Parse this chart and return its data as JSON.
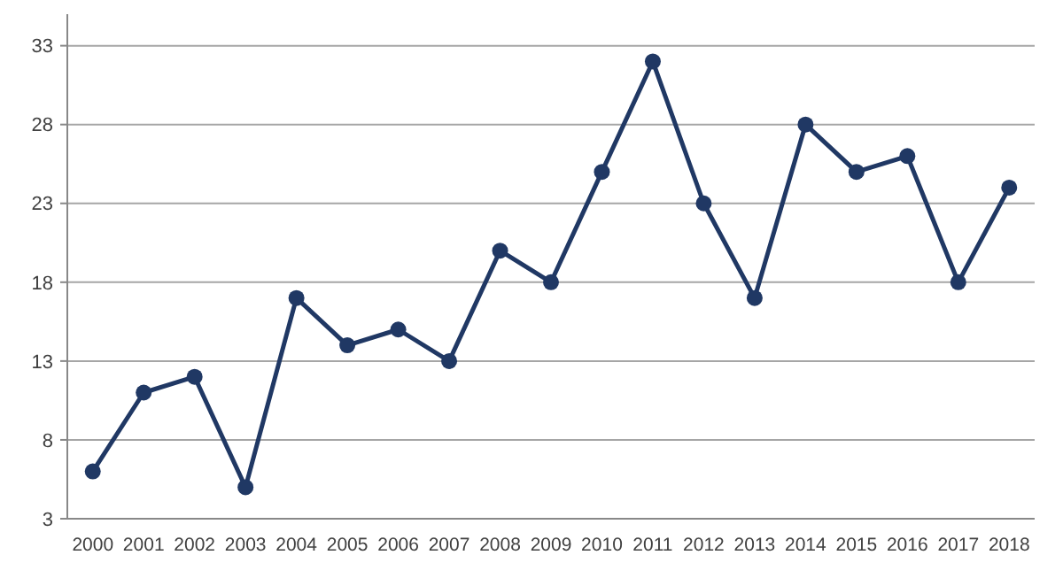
{
  "chart_data": {
    "type": "line",
    "categories": [
      "2000",
      "2001",
      "2002",
      "2003",
      "2004",
      "2005",
      "2006",
      "2007",
      "2008",
      "2009",
      "2010",
      "2011",
      "2012",
      "2013",
      "2014",
      "2015",
      "2016",
      "2017",
      "2018"
    ],
    "series": [
      {
        "color": "#203864",
        "values": [
          6,
          11,
          12,
          5,
          17,
          14,
          15,
          13,
          20,
          18,
          25,
          32,
          23,
          17,
          28,
          25,
          26,
          18,
          24
        ]
      }
    ],
    "ylim": [
      3,
      35
    ],
    "yticks": [
      3,
      8,
      13,
      18,
      23,
      28,
      33
    ],
    "grid": "y",
    "marker": "circle",
    "line_style": "solid"
  }
}
